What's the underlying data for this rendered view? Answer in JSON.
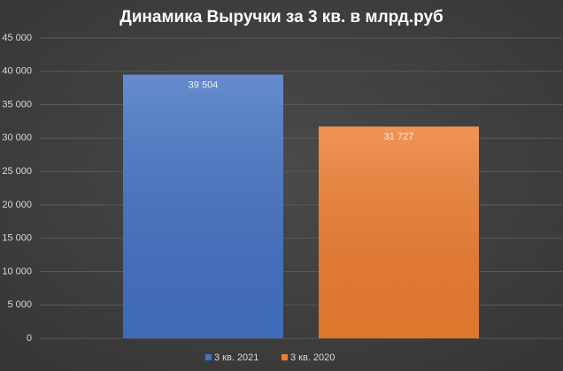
{
  "chart_data": {
    "type": "bar",
    "title": "Динамика Выручки за 3 кв. в млрд.руб",
    "categories": [
      null
    ],
    "series": [
      {
        "name": "3 кв. 2021",
        "color": "#4472c4",
        "values": [
          39504
        ],
        "value_labels": [
          "39 504"
        ]
      },
      {
        "name": "3 кв. 2020",
        "color": "#ed7d31",
        "values": [
          31727
        ],
        "value_labels": [
          "31 727"
        ]
      }
    ],
    "ylim": [
      0,
      45000
    ],
    "yticks": [
      0,
      {
        "value": 5000,
        "label": "5 000"
      },
      {
        "value": 10000,
        "label": "10 000"
      },
      {
        "value": 15000,
        "label": "15 000"
      },
      {
        "value": 20000,
        "label": "20 000"
      },
      {
        "value": 25000,
        "label": "25 000"
      },
      {
        "value": 30000,
        "label": "30 000"
      },
      {
        "value": 35000,
        "label": "35 000"
      },
      {
        "value": 40000,
        "label": "40 000"
      },
      {
        "value": 45000,
        "label": "45 000"
      }
    ],
    "grid": true,
    "legend": "bottom"
  }
}
